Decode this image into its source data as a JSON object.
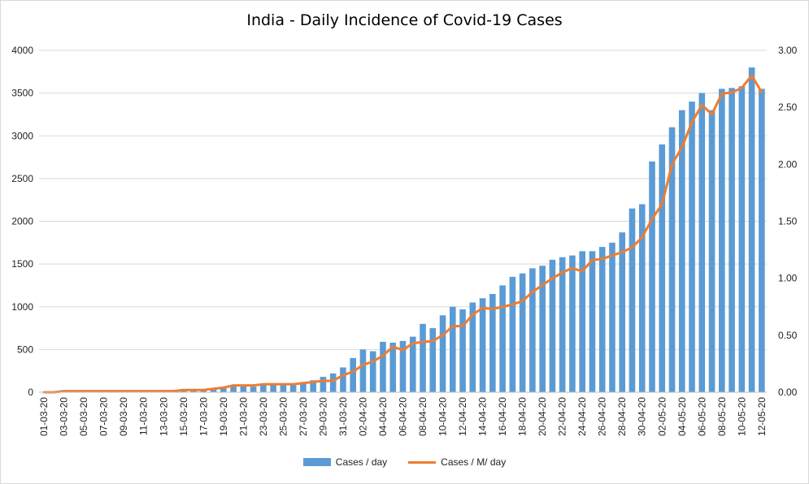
{
  "chart_data": {
    "type": "bar",
    "title": "India - Daily Incidence of Covid-19 Cases",
    "colors": {
      "bars": "#5b9bd5",
      "line": "#ed7d31",
      "grid": "#d9d9d9"
    },
    "y_left": {
      "min": 0,
      "max": 4000,
      "ticks": [
        "0",
        "500",
        "1000",
        "1500",
        "2000",
        "2500",
        "3000",
        "3500",
        "4000"
      ]
    },
    "y_right": {
      "min": 0,
      "max": 3.0,
      "ticks": [
        "0.00",
        "0.50",
        "1.00",
        "1.50",
        "2.00",
        "2.50",
        "3.00"
      ]
    },
    "x_labels": [
      "01-03-20",
      "03-03-20",
      "05-03-20",
      "07-03-20",
      "09-03-20",
      "11-03-20",
      "13-03-20",
      "15-03-20",
      "17-03-20",
      "19-03-20",
      "21-03-20",
      "23-03-20",
      "25-03-20",
      "27-03-20",
      "29-03-20",
      "31-03-20",
      "02-04-20",
      "04-04-20",
      "06-04-20",
      "08-04-20",
      "10-04-20",
      "12-04-20",
      "14-04-20",
      "16-04-20",
      "18-04-20",
      "20-04-20",
      "22-04-20",
      "24-04-20",
      "26-04-20",
      "28-04-20",
      "30-04-20",
      "02-05-20",
      "04-05-20",
      "06-05-20",
      "08-05-20",
      "10-05-20",
      "12-05-20"
    ],
    "x_categories": [
      "01-03-20",
      "02-03-20",
      "03-03-20",
      "04-03-20",
      "05-03-20",
      "06-03-20",
      "07-03-20",
      "08-03-20",
      "09-03-20",
      "10-03-20",
      "11-03-20",
      "12-03-20",
      "13-03-20",
      "14-03-20",
      "15-03-20",
      "16-03-20",
      "17-03-20",
      "18-03-20",
      "19-03-20",
      "20-03-20",
      "21-03-20",
      "22-03-20",
      "23-03-20",
      "24-03-20",
      "25-03-20",
      "26-03-20",
      "27-03-20",
      "28-03-20",
      "29-03-20",
      "30-03-20",
      "31-03-20",
      "01-04-20",
      "02-04-20",
      "03-04-20",
      "04-04-20",
      "05-04-20",
      "06-04-20",
      "07-04-20",
      "08-04-20",
      "09-04-20",
      "10-04-20",
      "11-04-20",
      "12-04-20",
      "13-04-20",
      "14-04-20",
      "15-04-20",
      "16-04-20",
      "17-04-20",
      "18-04-20",
      "19-04-20",
      "20-04-20",
      "21-04-20",
      "22-04-20",
      "23-04-20",
      "24-04-20",
      "25-04-20",
      "26-04-20",
      "27-04-20",
      "28-04-20",
      "29-04-20",
      "30-04-20",
      "01-05-20",
      "02-05-20",
      "03-05-20",
      "04-05-20",
      "05-05-20",
      "06-05-20",
      "07-05-20",
      "08-05-20",
      "09-05-20",
      "10-05-20",
      "11-05-20",
      "12-05-20"
    ],
    "series": [
      {
        "name": "Cases / day",
        "axis": "left",
        "values": [
          0,
          1,
          2,
          22,
          2,
          1,
          3,
          5,
          4,
          19,
          6,
          13,
          11,
          14,
          20,
          20,
          27,
          37,
          50,
          78,
          70,
          65,
          95,
          102,
          90,
          100,
          110,
          140,
          180,
          220,
          290,
          400,
          500,
          480,
          590,
          580,
          600,
          650,
          800,
          750,
          900,
          1000,
          970,
          1050,
          1100,
          1150,
          1250,
          1350,
          1390,
          1450,
          1480,
          1550,
          1580,
          1600,
          1650,
          1650,
          1700,
          1750,
          1870,
          2150,
          2200,
          2700,
          2900,
          3100,
          3300,
          3400,
          3500,
          3300,
          3550,
          3560,
          3580,
          3800,
          3550
        ]
      },
      {
        "name": "Cases / M/ day",
        "axis": "right",
        "values": [
          0,
          0,
          0.01,
          0.01,
          0.01,
          0.01,
          0.01,
          0.01,
          0.01,
          0.01,
          0.01,
          0.01,
          0.01,
          0.01,
          0.02,
          0.02,
          0.02,
          0.03,
          0.04,
          0.06,
          0.06,
          0.06,
          0.07,
          0.07,
          0.07,
          0.07,
          0.08,
          0.09,
          0.1,
          0.1,
          0.15,
          0.18,
          0.24,
          0.27,
          0.32,
          0.4,
          0.37,
          0.43,
          0.44,
          0.45,
          0.5,
          0.58,
          0.58,
          0.68,
          0.74,
          0.73,
          0.75,
          0.77,
          0.8,
          0.88,
          0.94,
          1.0,
          1.05,
          1.09,
          1.06,
          1.16,
          1.17,
          1.2,
          1.23,
          1.27,
          1.36,
          1.52,
          1.65,
          2.0,
          2.15,
          2.37,
          2.52,
          2.44,
          2.62,
          2.63,
          2.67,
          2.78,
          2.63
        ]
      }
    ],
    "legend": {
      "position": "bottom"
    },
    "grid": true
  }
}
